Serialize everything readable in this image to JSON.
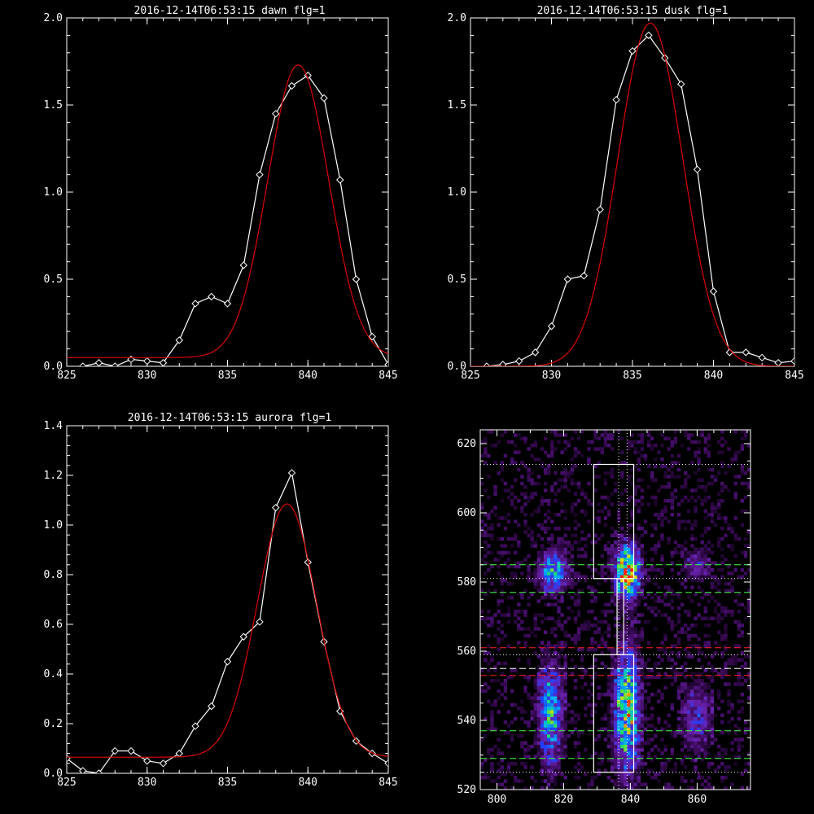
{
  "chart_data": [
    {
      "type": "line",
      "title": "2016-12-14T06:53:15 dawn flg=1",
      "xlim": [
        825,
        845
      ],
      "ylim": [
        0,
        2.0
      ],
      "xticks": [
        "825",
        "830",
        "835",
        "840",
        "845"
      ],
      "yticks": [
        "0.0",
        "0.5",
        "1.0",
        "1.5",
        "2.0"
      ],
      "xlabel": "",
      "ylabel": "",
      "series": [
        {
          "role": "observed",
          "color": "#ffffff",
          "marker": "diamond",
          "x": [
            826,
            827,
            828,
            829,
            830,
            831,
            832,
            833,
            834,
            835,
            836,
            837,
            838,
            839,
            840,
            841,
            842,
            843,
            844,
            845
          ],
          "y": [
            0.0,
            0.02,
            0.0,
            0.04,
            0.03,
            0.02,
            0.15,
            0.36,
            0.4,
            0.36,
            0.58,
            1.1,
            1.45,
            1.61,
            1.67,
            1.54,
            1.07,
            0.5,
            0.17,
            0.01
          ]
        },
        {
          "role": "fit",
          "color": "#dd0000",
          "gaussian": {
            "amplitude": 1.68,
            "center": 839.4,
            "sigma": 1.9,
            "baseline": 0.05
          }
        }
      ]
    },
    {
      "type": "line",
      "title": "2016-12-14T06:53:15 dusk flg=1",
      "xlim": [
        825,
        845
      ],
      "ylim": [
        0,
        2.0
      ],
      "xticks": [
        "825",
        "830",
        "835",
        "840",
        "845"
      ],
      "yticks": [
        "0.0",
        "0.5",
        "1.0",
        "1.5",
        "2.0"
      ],
      "xlabel": "",
      "ylabel": "",
      "series": [
        {
          "role": "observed",
          "color": "#ffffff",
          "marker": "diamond",
          "x": [
            826,
            827,
            828,
            829,
            830,
            831,
            832,
            833,
            834,
            835,
            836,
            837,
            838,
            839,
            840,
            841,
            842,
            843,
            844,
            845
          ],
          "y": [
            0.0,
            0.01,
            0.03,
            0.08,
            0.23,
            0.5,
            0.52,
            0.9,
            1.53,
            1.81,
            1.9,
            1.77,
            1.62,
            1.13,
            0.43,
            0.08,
            0.08,
            0.05,
            0.02,
            0.03
          ]
        },
        {
          "role": "fit",
          "color": "#dd0000",
          "gaussian": {
            "amplitude": 1.97,
            "center": 836.1,
            "sigma": 2.0,
            "baseline": 0.0
          }
        }
      ]
    },
    {
      "type": "line",
      "title": "2016-12-14T06:53:15 aurora flg=1",
      "xlim": [
        825,
        845
      ],
      "ylim": [
        0,
        1.4
      ],
      "xticks": [
        "825",
        "830",
        "835",
        "840",
        "845"
      ],
      "yticks": [
        "0.0",
        "0.2",
        "0.4",
        "0.6",
        "0.8",
        "1.0",
        "1.2",
        "1.4"
      ],
      "xlabel": "",
      "ylabel": "",
      "series": [
        {
          "role": "observed",
          "color": "#ffffff",
          "marker": "diamond",
          "x": [
            825,
            826,
            827,
            828,
            829,
            830,
            831,
            832,
            833,
            834,
            835,
            836,
            837,
            838,
            839,
            840,
            841,
            842,
            843,
            844,
            845
          ],
          "y": [
            0.06,
            0.01,
            0.0,
            0.09,
            0.09,
            0.05,
            0.04,
            0.08,
            0.19,
            0.27,
            0.45,
            0.55,
            0.61,
            1.07,
            1.21,
            0.85,
            0.53,
            0.25,
            0.13,
            0.08,
            0.04
          ]
        },
        {
          "role": "fit",
          "color": "#dd0000",
          "gaussian": {
            "amplitude": 1.02,
            "center": 838.7,
            "sigma": 1.85,
            "baseline": 0.065
          }
        }
      ]
    },
    {
      "type": "heatmap",
      "title": "",
      "xlim": [
        795,
        876
      ],
      "ylim": [
        520,
        624
      ],
      "xticks": [
        "800",
        "820",
        "840",
        "860"
      ],
      "yticks": [
        "520",
        "540",
        "560",
        "580",
        "600",
        "620"
      ],
      "xlabel": "",
      "ylabel": "",
      "colormap": [
        "#000000",
        "#3c0a5a",
        "#6a22b0",
        "#2040ff",
        "#00b0ff",
        "#20e060",
        "#e0e000",
        "#ff2000"
      ],
      "blobs": [
        {
          "x": 817,
          "y": 583,
          "sx": 3.0,
          "sy": 4.0,
          "peak": 0.55
        },
        {
          "x": 839,
          "y": 583,
          "sx": 2.5,
          "sy": 5.0,
          "peak": 0.95
        },
        {
          "x": 860,
          "y": 585,
          "sx": 2.5,
          "sy": 3.0,
          "peak": 0.28
        },
        {
          "x": 816,
          "y": 542,
          "sx": 2.5,
          "sy": 10.0,
          "peak": 0.55
        },
        {
          "x": 839,
          "y": 543,
          "sx": 2.5,
          "sy": 12.0,
          "peak": 0.75
        },
        {
          "x": 860,
          "y": 541,
          "sx": 3.0,
          "sy": 7.0,
          "peak": 0.3
        }
      ],
      "background_level": 0.08,
      "boxes": [
        {
          "x0": 829,
          "x1": 841,
          "y0": 581,
          "y1": 614
        },
        {
          "x0": 829,
          "x1": 841,
          "y0": 525,
          "y1": 559
        },
        {
          "x0": 836,
          "x1": 838,
          "y0": 559,
          "y1": 581
        }
      ],
      "hlines": [
        {
          "y": 614,
          "color": "#ffffff",
          "style": "dotted"
        },
        {
          "y": 585,
          "color": "#40ff40",
          "style": "dashed"
        },
        {
          "y": 581,
          "color": "#ffffff",
          "style": "dotted"
        },
        {
          "y": 577,
          "color": "#40ff40",
          "style": "dashed"
        },
        {
          "y": 561,
          "color": "#ff2020",
          "style": "dashed"
        },
        {
          "y": 559,
          "color": "#ffffff",
          "style": "dotted"
        },
        {
          "y": 555,
          "color": "#ffffff",
          "style": "dashed"
        },
        {
          "y": 553,
          "color": "#ff2020",
          "style": "dashed"
        },
        {
          "y": 537,
          "color": "#40ff40",
          "style": "dashed"
        },
        {
          "y": 529,
          "color": "#40ff40",
          "style": "dashed"
        },
        {
          "y": 525,
          "color": "#ffffff",
          "style": "dotted"
        }
      ],
      "vlines": [
        {
          "x": 836.5,
          "color": "#ffffff",
          "style": "dotted"
        },
        {
          "x": 839.0,
          "color": "#ffffff",
          "style": "dotted"
        }
      ]
    }
  ]
}
